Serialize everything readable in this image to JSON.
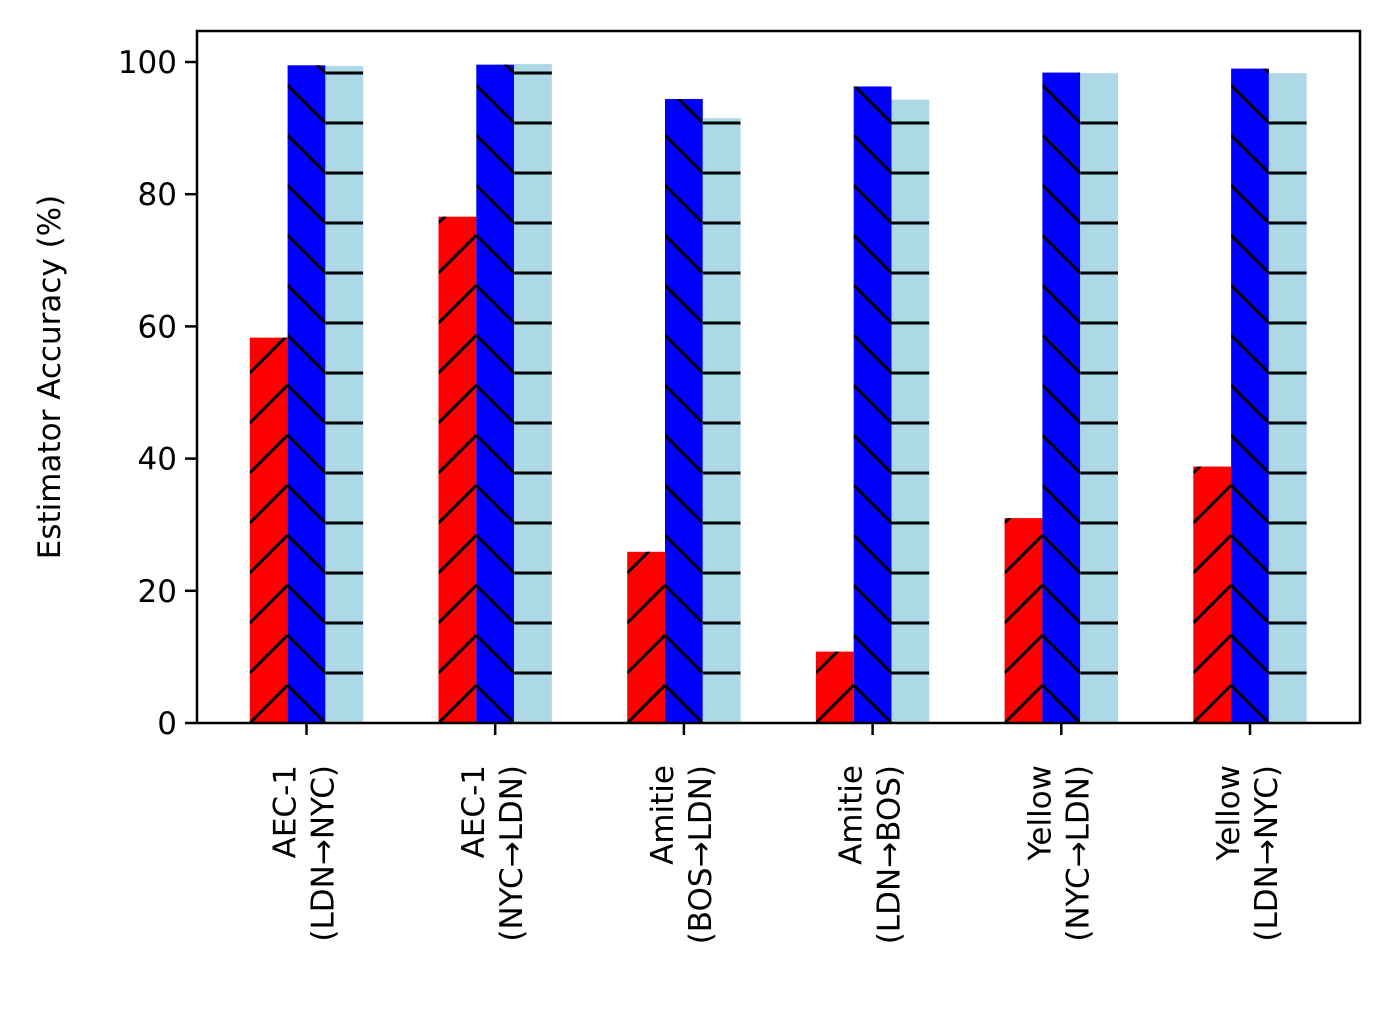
{
  "chart_data": {
    "type": "bar",
    "title": "",
    "xlabel": "",
    "ylabel": "Estimator Accuracy (%)",
    "ylim": [
      0,
      105
    ],
    "yticks": [
      "0",
      "20",
      "40",
      "60",
      "80",
      "100"
    ],
    "categories": [
      [
        "AEC-1",
        "(LDN→NYC)"
      ],
      [
        "AEC-1",
        "(NYC→LDN)"
      ],
      [
        "Amitie",
        "(BOS→LDN)"
      ],
      [
        "Amitie",
        "(LDN→BOS)"
      ],
      [
        "Yellow",
        "(NYC→LDN)"
      ],
      [
        "Yellow",
        "(LDN→NYC)"
      ]
    ],
    "series": [
      {
        "color": "#ff0000",
        "hatch": "forward-diagonal",
        "values": [
          58.3,
          76.6,
          25.9,
          10.8,
          31.0,
          38.8
        ]
      },
      {
        "color": "#0000ff",
        "hatch": "back-diagonal",
        "values": [
          99.5,
          99.6,
          94.4,
          96.3,
          98.4,
          99.0
        ]
      },
      {
        "color": "#add8e6",
        "hatch": "horizontal",
        "values": [
          99.4,
          99.7,
          91.5,
          94.3,
          98.3,
          98.3
        ]
      }
    ],
    "grid": false,
    "legend": "none"
  }
}
